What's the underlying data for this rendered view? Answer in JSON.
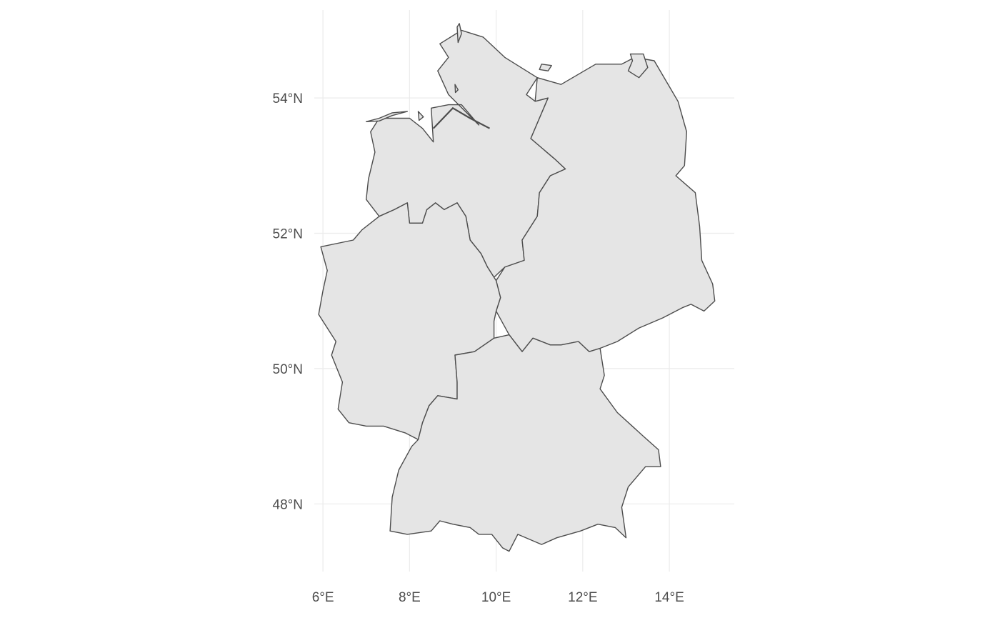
{
  "map": {
    "style": "minimal-theme",
    "grid": true,
    "colors": {
      "background": "#ffffff",
      "region_fill": "#e5e5e5",
      "region_stroke": "#4d4d4d",
      "grid": "#ebebeb",
      "label": "#4d4d4d"
    },
    "xlim": [
      5.8,
      15.5
    ],
    "ylim": [
      47.0,
      55.3
    ],
    "x_ticks": [
      {
        "value": 6,
        "label": "6°E"
      },
      {
        "value": 8,
        "label": "8°E"
      },
      {
        "value": 10,
        "label": "10°E"
      },
      {
        "value": 12,
        "label": "12°E"
      },
      {
        "value": 14,
        "label": "14°E"
      }
    ],
    "y_ticks": [
      {
        "value": 48,
        "label": "48°N"
      },
      {
        "value": 50,
        "label": "50°N"
      },
      {
        "value": 52,
        "label": "52°N"
      },
      {
        "value": 54,
        "label": "54°N"
      }
    ],
    "regions": [
      {
        "id": "north",
        "outline": [
          [
            9.2,
            55.0
          ],
          [
            9.7,
            54.9
          ],
          [
            10.2,
            54.6
          ],
          [
            10.95,
            54.3
          ],
          [
            10.7,
            54.05
          ],
          [
            10.9,
            53.95
          ],
          [
            11.2,
            54.0
          ],
          [
            11.0,
            53.7
          ],
          [
            10.8,
            53.4
          ],
          [
            11.35,
            53.1
          ],
          [
            11.6,
            52.95
          ],
          [
            11.25,
            52.85
          ],
          [
            11.0,
            52.6
          ],
          [
            10.95,
            52.25
          ],
          [
            10.6,
            51.9
          ],
          [
            10.65,
            51.6
          ],
          [
            10.2,
            51.5
          ],
          [
            9.95,
            51.35
          ],
          [
            9.8,
            51.5
          ],
          [
            9.65,
            51.7
          ],
          [
            9.4,
            51.9
          ],
          [
            9.3,
            52.25
          ],
          [
            9.1,
            52.45
          ],
          [
            8.8,
            52.35
          ],
          [
            8.6,
            52.45
          ],
          [
            8.4,
            52.35
          ],
          [
            8.3,
            52.15
          ],
          [
            8.0,
            52.15
          ],
          [
            7.95,
            52.45
          ],
          [
            7.65,
            52.35
          ],
          [
            7.3,
            52.25
          ],
          [
            7.0,
            52.5
          ],
          [
            7.05,
            52.8
          ],
          [
            7.2,
            53.2
          ],
          [
            7.1,
            53.5
          ],
          [
            7.3,
            53.7
          ],
          [
            8.0,
            53.7
          ],
          [
            8.3,
            53.55
          ],
          [
            8.55,
            53.35
          ],
          [
            8.5,
            53.85
          ],
          [
            8.9,
            53.9
          ],
          [
            9.2,
            53.9
          ],
          [
            9.6,
            53.6
          ],
          [
            8.9,
            54.05
          ],
          [
            8.65,
            54.4
          ],
          [
            8.9,
            54.6
          ],
          [
            8.7,
            54.8
          ],
          [
            9.2,
            55.0
          ]
        ]
      },
      {
        "id": "east",
        "outline": [
          [
            10.95,
            54.3
          ],
          [
            11.5,
            54.2
          ],
          [
            12.3,
            54.5
          ],
          [
            12.9,
            54.5
          ],
          [
            13.2,
            54.6
          ],
          [
            13.65,
            54.55
          ],
          [
            14.2,
            53.95
          ],
          [
            14.4,
            53.5
          ],
          [
            14.35,
            53.0
          ],
          [
            14.15,
            52.85
          ],
          [
            14.6,
            52.6
          ],
          [
            14.7,
            52.1
          ],
          [
            14.75,
            51.6
          ],
          [
            15.0,
            51.25
          ],
          [
            15.05,
            51.0
          ],
          [
            14.8,
            50.85
          ],
          [
            14.5,
            50.95
          ],
          [
            14.3,
            50.9
          ],
          [
            13.85,
            50.75
          ],
          [
            13.3,
            50.6
          ],
          [
            12.8,
            50.4
          ],
          [
            12.4,
            50.3
          ],
          [
            12.15,
            50.25
          ],
          [
            11.9,
            50.4
          ],
          [
            11.5,
            50.35
          ],
          [
            11.25,
            50.35
          ],
          [
            10.85,
            50.45
          ],
          [
            10.6,
            50.25
          ],
          [
            10.3,
            50.5
          ],
          [
            10.0,
            50.85
          ],
          [
            10.1,
            51.05
          ],
          [
            10.0,
            51.3
          ],
          [
            10.2,
            51.5
          ],
          [
            10.65,
            51.6
          ],
          [
            10.6,
            51.9
          ],
          [
            10.95,
            52.25
          ],
          [
            11.0,
            52.6
          ],
          [
            11.25,
            52.85
          ],
          [
            11.6,
            52.95
          ],
          [
            11.35,
            53.1
          ],
          [
            10.8,
            53.4
          ],
          [
            11.0,
            53.7
          ],
          [
            11.2,
            54.0
          ],
          [
            10.9,
            53.95
          ],
          [
            10.95,
            54.3
          ]
        ]
      },
      {
        "id": "west",
        "outline": [
          [
            7.3,
            52.25
          ],
          [
            6.9,
            52.05
          ],
          [
            6.7,
            51.9
          ],
          [
            5.95,
            51.8
          ],
          [
            6.1,
            51.45
          ],
          [
            6.0,
            51.15
          ],
          [
            5.9,
            50.8
          ],
          [
            6.15,
            50.55
          ],
          [
            6.3,
            50.4
          ],
          [
            6.2,
            50.2
          ],
          [
            6.45,
            49.8
          ],
          [
            6.35,
            49.4
          ],
          [
            6.6,
            49.2
          ],
          [
            7.0,
            49.15
          ],
          [
            7.4,
            49.15
          ],
          [
            7.9,
            49.05
          ],
          [
            8.2,
            48.95
          ],
          [
            8.3,
            49.2
          ],
          [
            8.45,
            49.45
          ],
          [
            8.65,
            49.6
          ],
          [
            9.1,
            49.55
          ],
          [
            9.1,
            49.8
          ],
          [
            9.05,
            50.2
          ],
          [
            9.5,
            50.25
          ],
          [
            9.95,
            50.45
          ],
          [
            9.95,
            50.7
          ],
          [
            10.0,
            50.85
          ],
          [
            10.1,
            51.05
          ],
          [
            10.0,
            51.3
          ],
          [
            9.95,
            51.35
          ],
          [
            9.8,
            51.5
          ],
          [
            9.65,
            51.7
          ],
          [
            9.4,
            51.9
          ],
          [
            9.3,
            52.25
          ],
          [
            9.1,
            52.45
          ],
          [
            8.8,
            52.35
          ],
          [
            8.6,
            52.45
          ],
          [
            8.4,
            52.35
          ],
          [
            8.3,
            52.15
          ],
          [
            8.0,
            52.15
          ],
          [
            7.95,
            52.45
          ],
          [
            7.65,
            52.35
          ],
          [
            7.3,
            52.25
          ]
        ]
      },
      {
        "id": "south",
        "outline": [
          [
            10.6,
            50.25
          ],
          [
            10.85,
            50.45
          ],
          [
            11.25,
            50.35
          ],
          [
            11.5,
            50.35
          ],
          [
            11.9,
            50.4
          ],
          [
            12.15,
            50.25
          ],
          [
            12.4,
            50.3
          ],
          [
            12.5,
            49.9
          ],
          [
            12.4,
            49.7
          ],
          [
            12.8,
            49.35
          ],
          [
            13.4,
            49.0
          ],
          [
            13.75,
            48.8
          ],
          [
            13.8,
            48.55
          ],
          [
            13.45,
            48.55
          ],
          [
            13.05,
            48.25
          ],
          [
            12.9,
            47.95
          ],
          [
            13.0,
            47.5
          ],
          [
            12.75,
            47.65
          ],
          [
            12.35,
            47.7
          ],
          [
            11.95,
            47.6
          ],
          [
            11.4,
            47.5
          ],
          [
            11.05,
            47.4
          ],
          [
            10.5,
            47.55
          ],
          [
            10.3,
            47.3
          ],
          [
            10.15,
            47.35
          ],
          [
            9.9,
            47.55
          ],
          [
            9.6,
            47.55
          ],
          [
            9.4,
            47.65
          ],
          [
            9.0,
            47.7
          ],
          [
            8.7,
            47.75
          ],
          [
            8.5,
            47.6
          ],
          [
            7.95,
            47.55
          ],
          [
            7.55,
            47.6
          ],
          [
            7.6,
            48.1
          ],
          [
            7.75,
            48.5
          ],
          [
            8.05,
            48.85
          ],
          [
            8.2,
            48.95
          ],
          [
            8.3,
            49.2
          ],
          [
            8.45,
            49.45
          ],
          [
            8.65,
            49.6
          ],
          [
            9.1,
            49.55
          ],
          [
            9.1,
            49.8
          ],
          [
            9.05,
            50.2
          ],
          [
            9.5,
            50.25
          ],
          [
            9.95,
            50.45
          ],
          [
            10.3,
            50.5
          ],
          [
            10.6,
            50.25
          ]
        ]
      }
    ],
    "islands": [
      [
        [
          9.15,
          55.1
        ],
        [
          9.2,
          54.95
        ],
        [
          9.12,
          54.82
        ],
        [
          9.1,
          55.05
        ]
      ],
      [
        [
          9.05,
          54.2
        ],
        [
          9.12,
          54.12
        ],
        [
          9.06,
          54.08
        ]
      ],
      [
        [
          11.05,
          54.5
        ],
        [
          11.28,
          54.48
        ],
        [
          11.2,
          54.4
        ],
        [
          11.0,
          54.42
        ]
      ],
      [
        [
          13.1,
          54.65
        ],
        [
          13.4,
          54.65
        ],
        [
          13.5,
          54.45
        ],
        [
          13.3,
          54.3
        ],
        [
          13.05,
          54.4
        ],
        [
          13.15,
          54.55
        ]
      ],
      [
        [
          7.0,
          53.65
        ],
        [
          7.3,
          53.7
        ],
        [
          7.6,
          53.78
        ],
        [
          7.95,
          53.8
        ],
        [
          7.6,
          53.74
        ],
        [
          7.3,
          53.66
        ]
      ],
      [
        [
          8.2,
          53.8
        ],
        [
          8.32,
          53.72
        ],
        [
          8.22,
          53.67
        ]
      ]
    ],
    "rivers": [
      [
        [
          8.55,
          53.55
        ],
        [
          9.0,
          53.85
        ],
        [
          9.4,
          53.7
        ],
        [
          9.85,
          53.55
        ]
      ]
    ]
  }
}
